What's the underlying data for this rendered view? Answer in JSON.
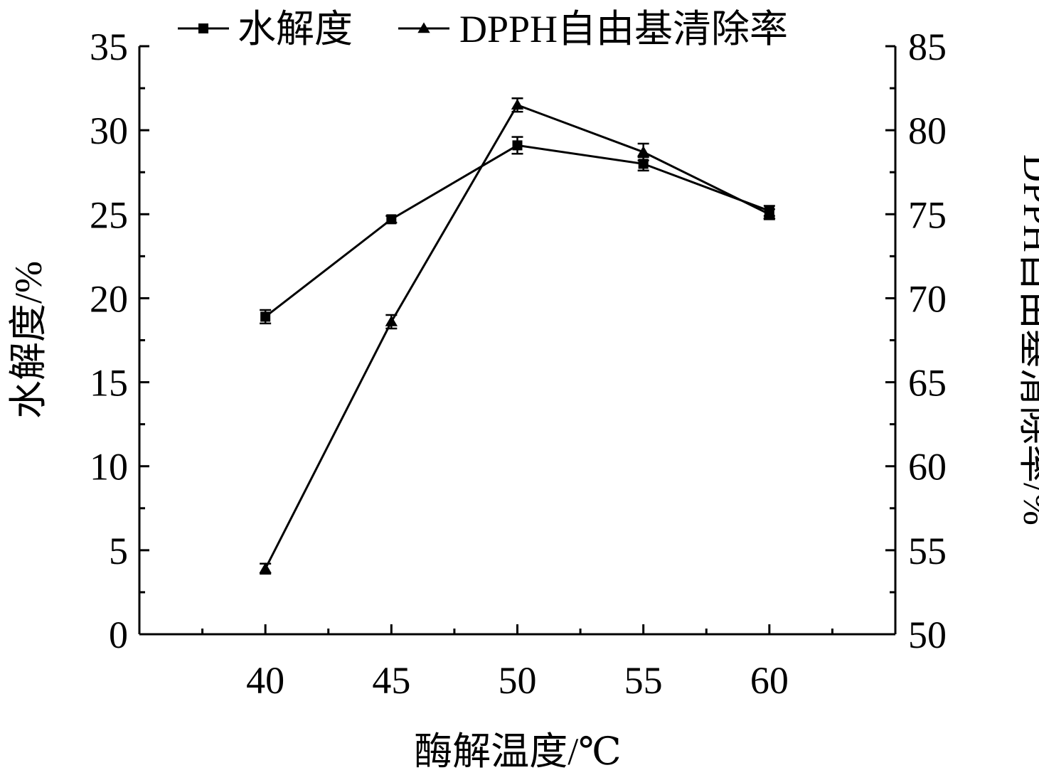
{
  "chart_data": {
    "type": "line",
    "x": [
      40,
      45,
      50,
      55,
      60
    ],
    "x_ticks": [
      "40",
      "45",
      "50",
      "55",
      "60"
    ],
    "xlabel": "酶解温度/℃",
    "xlim": [
      35,
      65
    ],
    "y_left": {
      "label": "水解度/%",
      "ticks": [
        "0",
        "5",
        "10",
        "15",
        "20",
        "25",
        "30",
        "35"
      ],
      "lim": [
        0,
        35
      ]
    },
    "y_right": {
      "label": "DPPH自由基清除率/%",
      "ticks": [
        "50",
        "55",
        "60",
        "65",
        "70",
        "75",
        "80",
        "85"
      ],
      "lim": [
        50,
        85
      ]
    },
    "series": [
      {
        "name": "水解度",
        "axis": "left",
        "marker": "square",
        "values": [
          18.9,
          24.7,
          29.1,
          28.0,
          25.2
        ],
        "errors": [
          0.4,
          0.2,
          0.5,
          0.4,
          0.3
        ]
      },
      {
        "name": "DPPH自由基清除率",
        "axis": "right",
        "marker": "triangle",
        "values": [
          53.9,
          68.6,
          81.5,
          78.7,
          75.0
        ],
        "errors": [
          0.3,
          0.4,
          0.4,
          0.5,
          0.3
        ]
      }
    ],
    "legend": "top",
    "grid": false
  }
}
